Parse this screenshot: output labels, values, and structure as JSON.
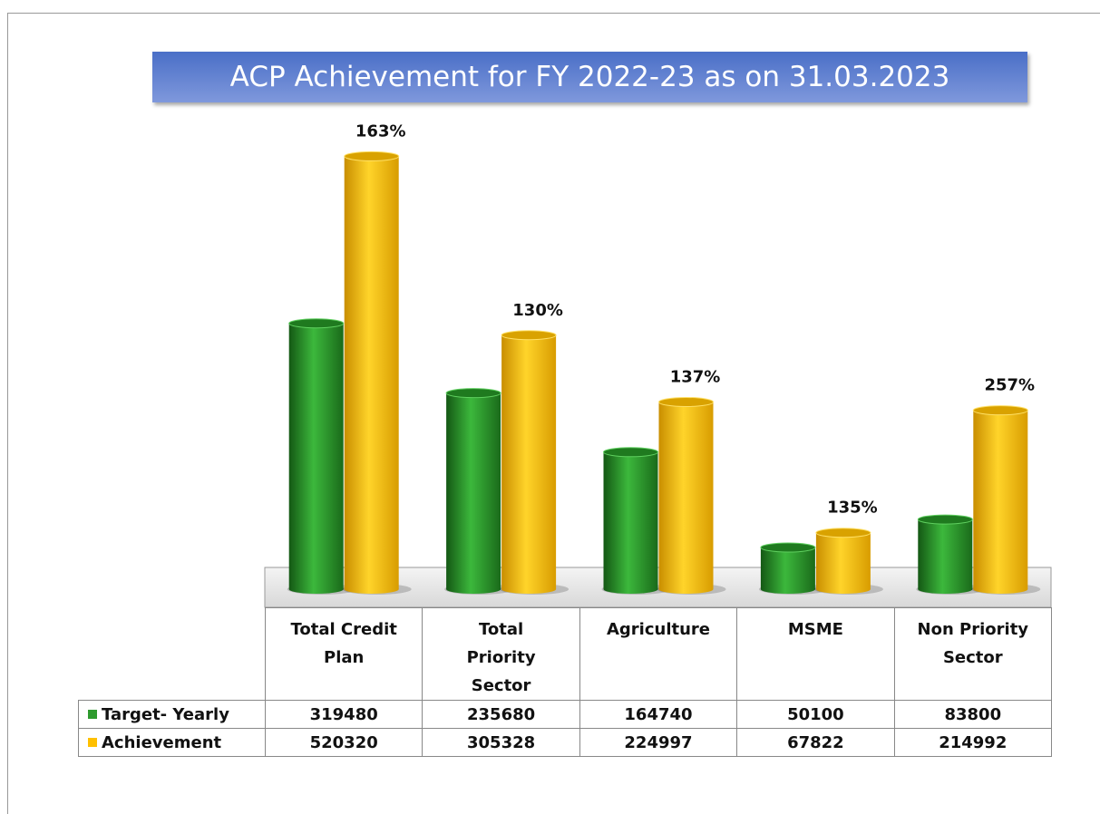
{
  "chart_data": {
    "type": "bar",
    "title": "ACP Achievement for FY 2022-23 as on 31.03.2023",
    "categories": [
      "Total Credit Plan",
      "Total Priority Sector",
      "Agriculture",
      "MSME",
      "Non Priority Sector"
    ],
    "series": [
      {
        "name": "Target- Yearly",
        "color": "#2e9a2e",
        "values": [
          319480,
          235680,
          164740,
          50100,
          83800
        ]
      },
      {
        "name": "Achievement",
        "color": "#ffc000",
        "values": [
          520320,
          305328,
          224997,
          67822,
          214992
        ]
      }
    ],
    "annotations": [
      "163%",
      "130%",
      "137%",
      "135%",
      "257%"
    ],
    "ylim": [
      0,
      560000
    ]
  }
}
